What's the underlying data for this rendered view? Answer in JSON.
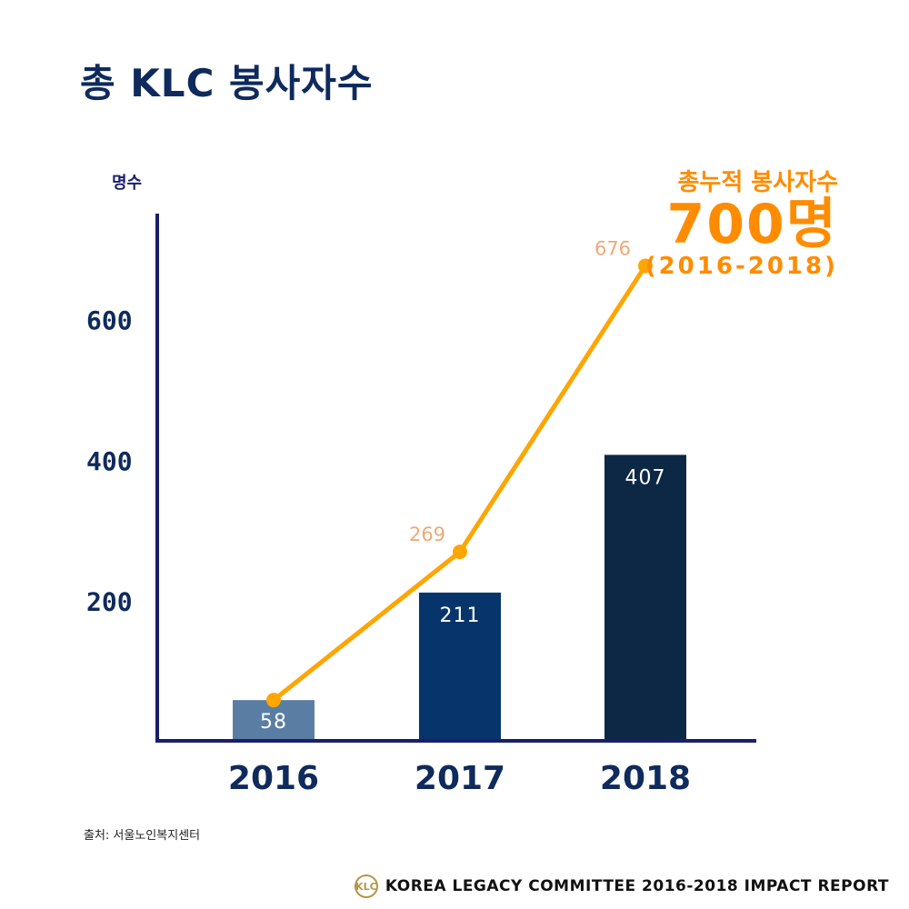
{
  "title": "총 KLC 봉사자수",
  "source": "출처: 서울노인복지센터",
  "highlight": {
    "label": "총누적 봉사자수",
    "value": "700명",
    "period": "(2016-2018)"
  },
  "footer": {
    "logo_text": "KLC",
    "text": "KOREA LEGACY COMMITTEE 2016-2018 IMPACT REPORT"
  },
  "colors": {
    "axis": "#1a1f6b",
    "tick_label": "#0f2a5c",
    "line": "#ffa500",
    "line_label": "#f0a878",
    "bar_label": "#ffffff"
  },
  "chart_data": {
    "type": "bar",
    "ylabel": "명수",
    "xlabel": "",
    "categories": [
      "2016",
      "2017",
      "2018"
    ],
    "ylim": [
      0,
      750
    ],
    "yticks": [
      200,
      400,
      600
    ],
    "series": [
      {
        "type": "bar",
        "values": [
          58,
          211,
          407
        ],
        "colors": [
          "#5a7ea3",
          "#07356b",
          "#0d2845"
        ]
      },
      {
        "type": "line",
        "values": [
          58,
          269,
          676
        ]
      }
    ],
    "data_labels": {
      "bar": [
        "58",
        "211",
        "407"
      ],
      "line": [
        "",
        "269",
        "676"
      ]
    },
    "grid": false,
    "legend": "none"
  }
}
